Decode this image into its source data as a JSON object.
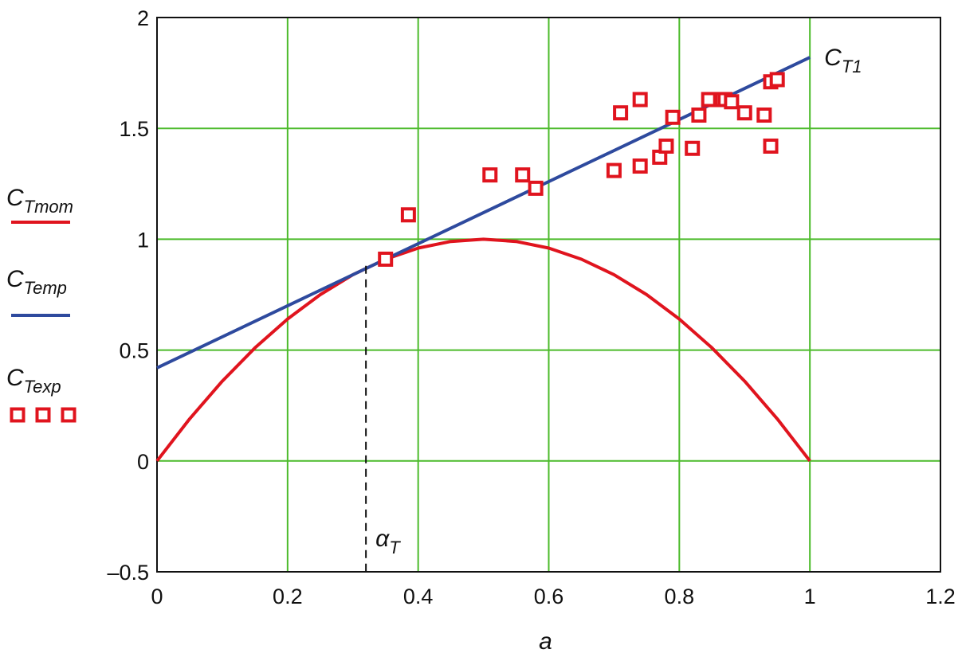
{
  "chart_data": {
    "type": "line",
    "xlabel": "a",
    "xlim": [
      0,
      1.2
    ],
    "ylim": [
      -0.5,
      2
    ],
    "xticks": [
      0,
      0.2,
      0.4,
      0.6,
      0.8,
      1,
      1.2
    ],
    "yticks": [
      -0.5,
      0,
      0.5,
      1,
      1.5,
      2
    ],
    "xtick_labels": [
      "0",
      "0.2",
      "0.4",
      "0.6",
      "0.8",
      "1",
      "1.2"
    ],
    "ytick_labels": [
      "–0.5",
      "0",
      "0.5",
      "1",
      "1.5",
      "2"
    ],
    "grid": true,
    "colors": {
      "grid": "#4cbb2b",
      "mom": "#e0141e",
      "emp": "#2e4a9e",
      "exp": "#e0141e"
    },
    "legend_position": "left",
    "series": [
      {
        "name": "C_Tmom",
        "label_main": "C",
        "label_sub": "Tmom",
        "kind": "line",
        "x": [
          0,
          0.05,
          0.1,
          0.15,
          0.2,
          0.25,
          0.3,
          0.35,
          0.4,
          0.45,
          0.5,
          0.55,
          0.6,
          0.65,
          0.7,
          0.75,
          0.8,
          0.85,
          0.9,
          0.95,
          1
        ],
        "y": [
          0,
          0.19,
          0.36,
          0.51,
          0.64,
          0.75,
          0.84,
          0.91,
          0.96,
          0.99,
          1.0,
          0.99,
          0.96,
          0.91,
          0.84,
          0.75,
          0.64,
          0.51,
          0.36,
          0.19,
          0
        ]
      },
      {
        "name": "C_Temp",
        "label_main": "C",
        "label_sub": "Temp",
        "kind": "line",
        "x": [
          0,
          1
        ],
        "y": [
          0.42,
          1.82
        ]
      },
      {
        "name": "C_Texp",
        "label_main": "C",
        "label_sub": "Texp",
        "kind": "scatter",
        "x": [
          0.35,
          0.385,
          0.51,
          0.56,
          0.58,
          0.7,
          0.71,
          0.74,
          0.74,
          0.77,
          0.78,
          0.79,
          0.82,
          0.83,
          0.845,
          0.865,
          0.87,
          0.88,
          0.9,
          0.93,
          0.94,
          0.94,
          0.95
        ],
        "y": [
          0.91,
          1.11,
          1.29,
          1.29,
          1.23,
          1.31,
          1.57,
          1.63,
          1.33,
          1.37,
          1.42,
          1.55,
          1.41,
          1.56,
          1.63,
          1.63,
          1.63,
          1.62,
          1.57,
          1.56,
          1.42,
          1.71,
          1.72
        ]
      }
    ],
    "annotations": [
      {
        "kind": "line_label",
        "main": "C",
        "sub": "T1",
        "x": 1.0,
        "y": 1.82
      },
      {
        "kind": "vline_dashed",
        "main": "α",
        "sub": "T",
        "x": 0.32,
        "y_from": -0.5,
        "y_to": 0.88
      }
    ]
  }
}
